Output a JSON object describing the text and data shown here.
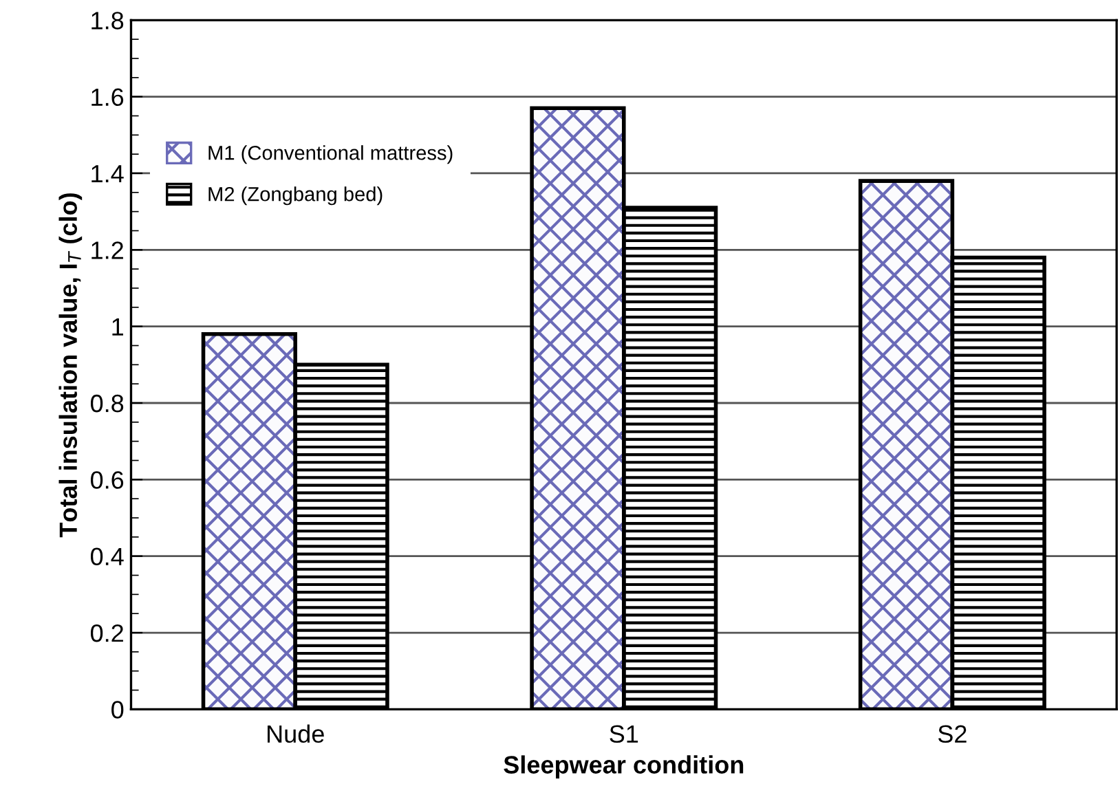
{
  "chart_data": {
    "type": "bar",
    "xlabel": "Sleepwear condition",
    "ylabel": "Total insulation value, I$_{T}$ (clo)",
    "categories": [
      "Nude",
      "S1",
      "S2"
    ],
    "series": [
      {
        "name": "M1 (Conventional mattress)",
        "color": "#6a6ab8",
        "values": [
          0.98,
          1.57,
          1.38
        ]
      },
      {
        "name": "M2 (Zongbang bed)",
        "color": "#000000",
        "values": [
          0.9,
          1.31,
          1.18
        ]
      }
    ],
    "ylim": [
      0,
      1.8
    ],
    "yticks": [
      0,
      0.2,
      0.4,
      0.6,
      0.8,
      1,
      1.2,
      1.4,
      1.6,
      1.8
    ],
    "grid": "y",
    "legend": "top left"
  }
}
